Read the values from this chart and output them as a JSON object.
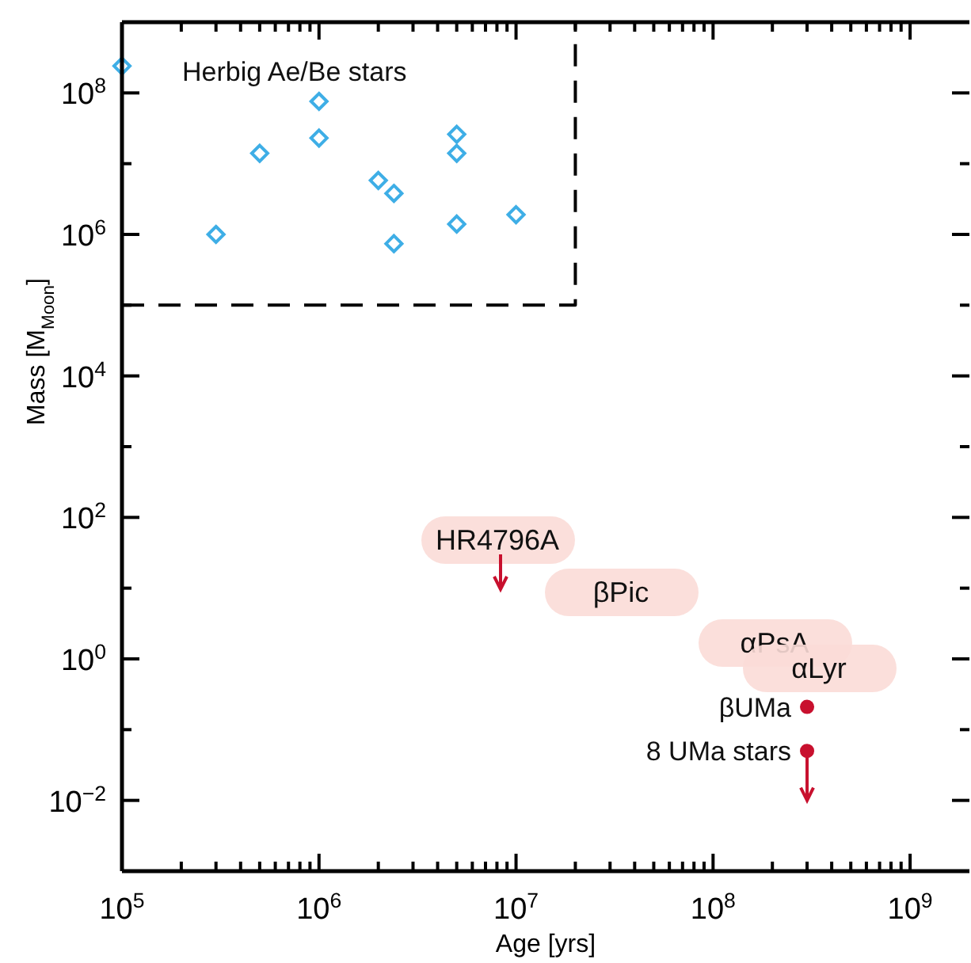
{
  "chart_data": {
    "type": "scatter",
    "xlabel": "Age  [yrs]",
    "ylabel": "Mass  [M$_{Moon}$]",
    "log": "xy",
    "xlim": [
      100000,
      2000000000
    ],
    "ylim": [
      0.001,
      1000000000
    ],
    "xticks": [
      {
        "value": 100000,
        "label": "10$^{5}$"
      },
      {
        "value": 200000,
        "label": null
      },
      {
        "value": 300000,
        "label": null
      },
      {
        "value": 400000,
        "label": null
      },
      {
        "value": 500000,
        "label": null
      },
      {
        "value": 600000,
        "label": null
      },
      {
        "value": 700000,
        "label": null
      },
      {
        "value": 800000,
        "label": null
      },
      {
        "value": 900000,
        "label": null
      },
      {
        "value": 1000000,
        "label": "10$^{6}$"
      },
      {
        "value": 2000000,
        "label": null
      },
      {
        "value": 3000000,
        "label": null
      },
      {
        "value": 4000000,
        "label": null
      },
      {
        "value": 5000000,
        "label": null
      },
      {
        "value": 6000000,
        "label": null
      },
      {
        "value": 7000000,
        "label": null
      },
      {
        "value": 8000000,
        "label": null
      },
      {
        "value": 9000000,
        "label": null
      },
      {
        "value": 10000000,
        "label": "10$^{7}$"
      },
      {
        "value": 20000000,
        "label": null
      },
      {
        "value": 30000000,
        "label": null
      },
      {
        "value": 40000000,
        "label": null
      },
      {
        "value": 50000000,
        "label": null
      },
      {
        "value": 60000000,
        "label": null
      },
      {
        "value": 70000000,
        "label": null
      },
      {
        "value": 80000000,
        "label": null
      },
      {
        "value": 90000000,
        "label": null
      },
      {
        "value": 100000000,
        "label": "10$^{8}$"
      },
      {
        "value": 200000000,
        "label": null
      },
      {
        "value": 300000000,
        "label": null
      },
      {
        "value": 400000000,
        "label": null
      },
      {
        "value": 500000000,
        "label": null
      },
      {
        "value": 600000000,
        "label": null
      },
      {
        "value": 700000000,
        "label": null
      },
      {
        "value": 800000000,
        "label": null
      },
      {
        "value": 900000000,
        "label": null
      },
      {
        "value": 1000000000,
        "label": "10$^{9}$"
      }
    ],
    "yticks": [
      {
        "value": 0.01,
        "label": "10$^{−2}$"
      },
      {
        "value": 0.1,
        "label": null
      },
      {
        "value": 1,
        "label": "10$^{0}$"
      },
      {
        "value": 10,
        "label": null
      },
      {
        "value": 100,
        "label": "10$^{2}$"
      },
      {
        "value": 1000,
        "label": null
      },
      {
        "value": 10000,
        "label": "10$^{4}$"
      },
      {
        "value": 100000,
        "label": null
      },
      {
        "value": 1000000,
        "label": "10$^{6}$"
      },
      {
        "value": 10000000,
        "label": null
      },
      {
        "value": 100000000,
        "label": "10$^{8}$"
      }
    ],
    "grid": false,
    "series": [
      {
        "marker": "diamond",
        "color": "#3eaee6",
        "x": [
          100000,
          300000,
          500000,
          1000000,
          1000000,
          2000000,
          2400000,
          2400000,
          5000000,
          5000000,
          5000000,
          10000000
        ],
        "values": [
          240000000,
          1000000,
          14000000,
          76000000,
          23000000,
          5800000,
          3800000,
          740000,
          26000000,
          14000000,
          1400000,
          1900000
        ]
      },
      {
        "type": "line",
        "line_style": "dashed",
        "color": "#000000",
        "x": [
          100000,
          20000000,
          20000000
        ],
        "values": [
          100000,
          100000,
          1000000000
        ]
      },
      {
        "marker": "circle",
        "name": "βUMa",
        "color": "#c8102e",
        "x": [
          300000000
        ],
        "values": [
          0.21
        ]
      },
      {
        "marker": "circle",
        "name": "8 UMa stars",
        "color": "#c8102e",
        "x": [
          300000000
        ],
        "values": [
          0.05
        ],
        "errors": [
          [
            0.01,
            0.05
          ]
        ]
      }
    ],
    "annotations": [
      "Herbig Ae/Be stars",
      "HR4796A",
      "βPic",
      "αPsA",
      "αLyr"
    ]
  }
}
